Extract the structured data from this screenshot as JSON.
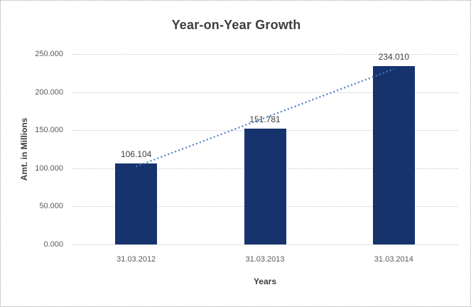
{
  "window": {
    "background": "#ffffff",
    "border_style": "dotted gray frame"
  },
  "chart_data": {
    "type": "bar",
    "title": "Year-on-Year Growth",
    "xlabel": "Years",
    "ylabel": "Amt. in Millions",
    "categories": [
      "31.03.2012",
      "31.03.2013",
      "31.03.2014"
    ],
    "values": [
      106.104,
      151.781,
      234.01
    ],
    "data_labels": [
      "106.104",
      "151.781",
      "234.010"
    ],
    "ylim": [
      0,
      250
    ],
    "yticks": [
      {
        "value": 0,
        "label": "0.000"
      },
      {
        "value": 50,
        "label": "50.000"
      },
      {
        "value": 100,
        "label": "100.000"
      },
      {
        "value": 150,
        "label": "150.000"
      },
      {
        "value": 200,
        "label": "200.000"
      },
      {
        "value": 250,
        "label": "250.000"
      }
    ],
    "grid": "horizontal dotted gridlines, no axis lines",
    "legend": "none",
    "trendline": {
      "style": "dotted",
      "from_category_index": 0,
      "to_category_index": 2
    }
  },
  "colors": {
    "bar_fill": "#17336e",
    "trendline": "#4a7ec0",
    "gridline": "#c8c8c8",
    "title_text": "#3d3d3d",
    "tick_text": "#595959",
    "data_label_text": "#404040",
    "frame_border": "#a3a3a3"
  }
}
